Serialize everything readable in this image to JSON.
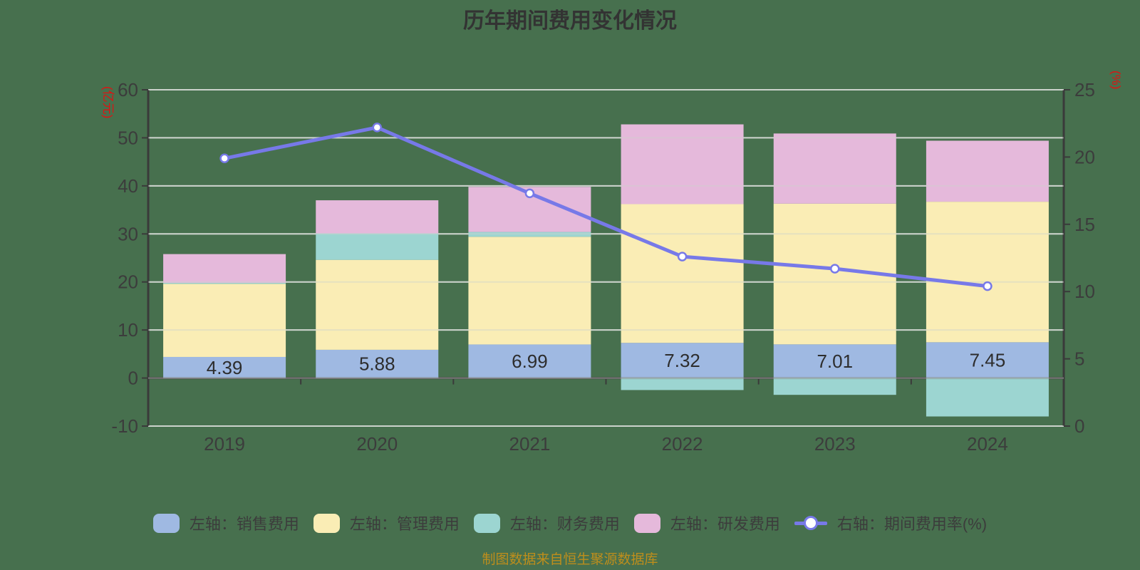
{
  "title": "历年期间费用变化情况",
  "footer": "制图数据来自恒生聚源数据库",
  "colors": {
    "background": "#47704E",
    "sales_bar": "#9FB9E2",
    "admin_bar": "#FAEDB5",
    "finance_bar": "#9CD5D1",
    "rd_bar": "#E5B9DB",
    "rate_line": "#7779E8",
    "marker_fill": "#FFFFFF",
    "grid_line": "#CDD3CD",
    "axis_line": "#3A3A3A",
    "tick_text": "#3C3C3C",
    "axis_name_red": "#E01212",
    "bar_label_text": "#2D2D2D",
    "footer_text": "#BE8E1C",
    "title_text": "#333333"
  },
  "chart_data": {
    "type": "bar",
    "subtype": "stacked-bars-with-line-overlay",
    "title": "历年期间费用变化情况",
    "categories": [
      "2019",
      "2020",
      "2021",
      "2022",
      "2023",
      "2024"
    ],
    "series": [
      {
        "key": "sales",
        "name": "左轴：销售费用",
        "type": "bar",
        "axis": "left",
        "color": "#9FB9E2",
        "values": [
          4.39,
          5.88,
          6.99,
          7.32,
          7.01,
          7.45
        ]
      },
      {
        "key": "admin",
        "name": "左轴：管理费用",
        "type": "bar",
        "axis": "left",
        "color": "#FAEDB5",
        "values": [
          15.21,
          18.72,
          22.41,
          28.88,
          29.29,
          29.25
        ]
      },
      {
        "key": "finance",
        "name": "左轴：财务费用",
        "type": "bar",
        "axis": "left",
        "color": "#9CD5D1",
        "values": [
          0.2,
          5.5,
          1.0,
          -2.5,
          -3.5,
          -8.0
        ]
      },
      {
        "key": "rd",
        "name": "左轴：研发费用",
        "type": "bar",
        "axis": "left",
        "color": "#E5B9DB",
        "values": [
          6.0,
          6.9,
          9.4,
          16.6,
          14.6,
          12.7
        ]
      },
      {
        "key": "rate",
        "name": "右轴：期间费用率(%)",
        "type": "line",
        "axis": "right",
        "color": "#7779E8",
        "values": [
          19.9,
          22.2,
          17.3,
          12.6,
          11.7,
          10.4
        ]
      }
    ],
    "bar_value_labels": [
      "4.39",
      "5.88",
      "6.99",
      "7.32",
      "7.01",
      "7.45"
    ],
    "left_axis": {
      "name": "(亿元)",
      "min": -10,
      "max": 60,
      "ticks": [
        60,
        50,
        40,
        30,
        20,
        10,
        0,
        -10
      ]
    },
    "right_axis": {
      "name": "(%)",
      "min": 0,
      "max": 25,
      "ticks": [
        25,
        20,
        15,
        10,
        5,
        0
      ]
    },
    "grid": true,
    "legend_position": "bottom",
    "stack_order": [
      "sales",
      "admin",
      "finance",
      "rd"
    ]
  }
}
